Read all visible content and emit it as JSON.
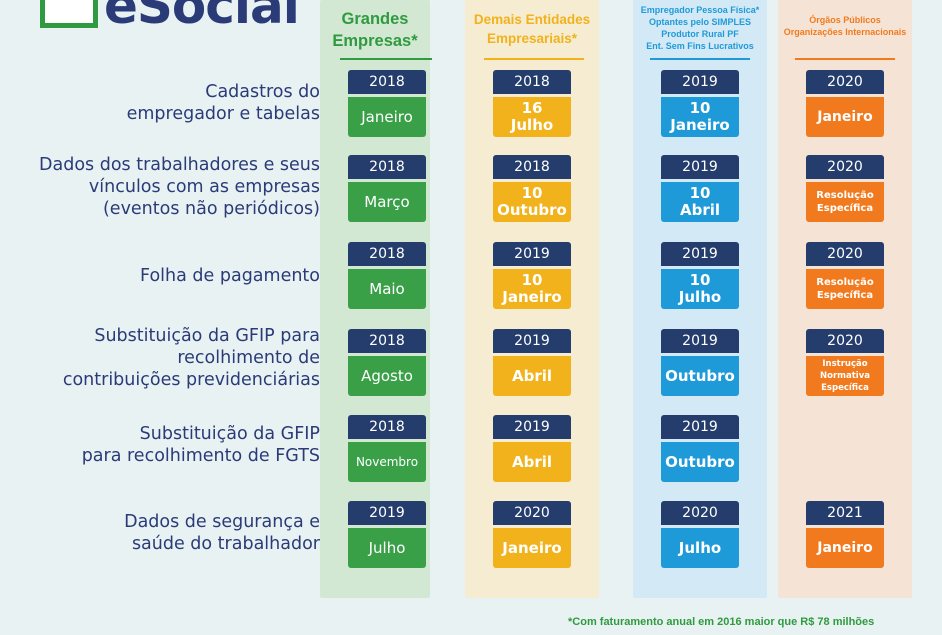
{
  "logo": {
    "text": "eSocial"
  },
  "colors": {
    "green": "#3aa048",
    "yellow": "#f1b21c",
    "blue": "#1f9ad9",
    "orange": "#f27a1e",
    "navy": "#253d6d"
  },
  "columns": [
    {
      "key": "grandes",
      "header_lines": [
        "Grandes",
        "Empresas*"
      ],
      "color": "#2f9a3f"
    },
    {
      "key": "demais",
      "header_lines": [
        "Demais Entidades",
        "Empresariais*"
      ],
      "color": "#f1b21c"
    },
    {
      "key": "pf",
      "header_lines": [
        "Empregador Pessoa Física*",
        "Optantes pelo SIMPLES",
        "Produtor Rural PF",
        "Ent. Sem Fins Lucrativos"
      ],
      "color": "#1f9ad9"
    },
    {
      "key": "publicos",
      "header_lines": [
        "Órgãos Públicos",
        "Organizações Internacionais"
      ],
      "color": "#f27a1e"
    }
  ],
  "rows": [
    {
      "label_lines": [
        "Cadastros do",
        "empregador e tabelas"
      ],
      "cells": [
        {
          "year": "2018",
          "value": [
            "Janeiro"
          ]
        },
        {
          "year": "2018",
          "value": [
            "16",
            "Julho"
          ]
        },
        {
          "year": "2019",
          "value": [
            "10",
            "Janeiro"
          ]
        },
        {
          "year": "2020",
          "value": [
            "Janeiro"
          ]
        }
      ]
    },
    {
      "label_lines": [
        "Dados dos trabalhadores e seus",
        "vínculos com as empresas",
        "(eventos não periódicos)"
      ],
      "cells": [
        {
          "year": "2018",
          "value": [
            "Março"
          ]
        },
        {
          "year": "2018",
          "value": [
            "10",
            "Outubro"
          ]
        },
        {
          "year": "2019",
          "value": [
            "10",
            "Abril"
          ]
        },
        {
          "year": "2020",
          "value": [
            "Resolução",
            "Específica"
          ]
        }
      ]
    },
    {
      "label_lines": [
        "Folha de pagamento"
      ],
      "cells": [
        {
          "year": "2018",
          "value": [
            "Maio"
          ]
        },
        {
          "year": "2019",
          "value": [
            "10",
            "Janeiro"
          ]
        },
        {
          "year": "2019",
          "value": [
            "10",
            "Julho"
          ]
        },
        {
          "year": "2020",
          "value": [
            "Resolução",
            "Específica"
          ]
        }
      ]
    },
    {
      "label_lines": [
        "Substituição da GFIP para",
        "recolhimento de",
        "contribuições previdenciárias"
      ],
      "cells": [
        {
          "year": "2018",
          "value": [
            "Agosto"
          ]
        },
        {
          "year": "2019",
          "value": [
            "Abril"
          ]
        },
        {
          "year": "2019",
          "value": [
            "Outubro"
          ]
        },
        {
          "year": "2020",
          "value": [
            "Instrução",
            "Normativa",
            "Específica"
          ]
        }
      ]
    },
    {
      "label_lines": [
        "Substituição da GFIP",
        "para recolhimento de FGTS"
      ],
      "cells": [
        {
          "year": "2018",
          "value": [
            "Novembro"
          ]
        },
        {
          "year": "2019",
          "value": [
            "Abril"
          ]
        },
        {
          "year": "2019",
          "value": [
            "Outubro"
          ]
        },
        null
      ]
    },
    {
      "label_lines": [
        "Dados de segurança e",
        "saúde do trabalhador"
      ],
      "cells": [
        {
          "year": "2019",
          "value": [
            "Julho"
          ]
        },
        {
          "year": "2020",
          "value": [
            "Janeiro"
          ]
        },
        {
          "year": "2020",
          "value": [
            "Julho"
          ]
        },
        {
          "year": "2021",
          "value": [
            "Janeiro"
          ]
        }
      ]
    }
  ],
  "footnote": "*Com faturamento anual em 2016 maior que R$ 78  milhões"
}
